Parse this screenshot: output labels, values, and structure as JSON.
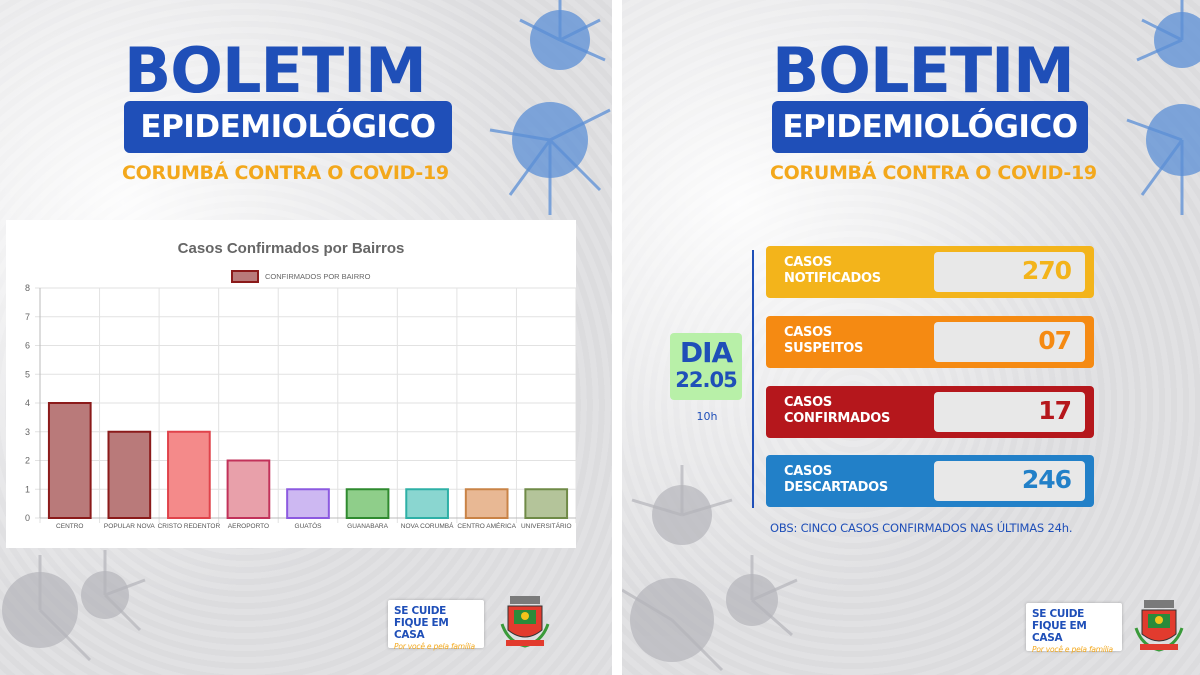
{
  "header": {
    "title": "BOLETIM",
    "subtitle_box": "EPIDEMIOLÓGICO",
    "tagline": "CORUMBÁ CONTRA O COVID-19"
  },
  "chart_data": {
    "type": "bar",
    "title": "Casos Confirmados por Bairros",
    "series": [
      {
        "name": "CONFIRMADOS POR BAIRRO",
        "values": [
          4,
          3,
          3,
          2,
          1,
          1,
          1,
          1,
          1
        ]
      }
    ],
    "categories": [
      "CENTRO",
      "POPULAR NOVA",
      "CRISTO REDENTOR",
      "AEROPORTO",
      "GUATÓS",
      "GUANABARA",
      "NOVA CORUMBÁ",
      "CENTRO AMÉRICA",
      "UNIVERSITÁRIO"
    ],
    "ylim": [
      0,
      8
    ],
    "yticks": [
      "0",
      "1",
      "2",
      "3",
      "4",
      "5",
      "6",
      "7",
      "8"
    ],
    "grid": true,
    "legend": "top",
    "fill_colors": [
      "#b97a7a",
      "#b97a7a",
      "#f48a8a",
      "#e8a0aa",
      "#cdb8f2",
      "#8fce8a",
      "#8ad6d0",
      "#e8b894",
      "#b4c49a"
    ],
    "stroke_colors": [
      "#8b1a1a",
      "#8b1a1a",
      "#e0434b",
      "#c2325a",
      "#8c5ae0",
      "#2f8a2f",
      "#2eb0a6",
      "#c98346",
      "#6f8a47"
    ]
  },
  "day": {
    "label": "DIA",
    "date": "22.05",
    "time": "10h"
  },
  "stats": [
    {
      "line1": "CASOS",
      "line2": "NOTIFICADOS",
      "value": "270",
      "color": "#f3b41b"
    },
    {
      "line1": "CASOS",
      "line2": "SUSPEITOS",
      "value": "07",
      "color": "#f58a12"
    },
    {
      "line1": "CASOS",
      "line2": "CONFIRMADOS",
      "value": "17",
      "color": "#b5171c"
    },
    {
      "line1": "CASOS",
      "line2": "DESCARTADOS",
      "value": "246",
      "color": "#2280c8"
    }
  ],
  "obs": "OBS: CINCO CASOS CONFIRMADOS NAS ÚLTIMAS 24h.",
  "badge": {
    "line1": "SE CUIDE",
    "line2": "FIQUE EM CASA",
    "line3": "Por você e pela família"
  },
  "colors": {
    "brand_blue": "#1f4fb8",
    "accent_orange": "#f3a81c",
    "day_green": "#b8f0a8"
  }
}
